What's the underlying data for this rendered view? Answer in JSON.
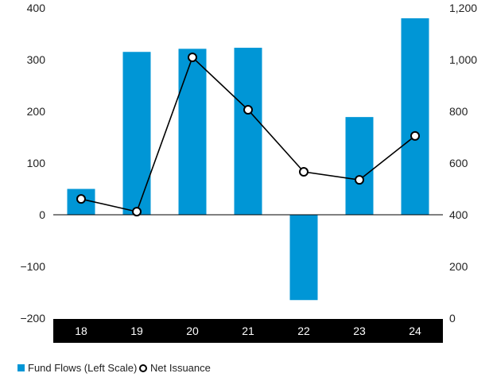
{
  "chart_data": {
    "type": "bar",
    "title": "",
    "categories": [
      "18",
      "19",
      "20",
      "21",
      "22",
      "23",
      "24"
    ],
    "series": [
      {
        "name": "Fund Flows (Left Scale)",
        "type": "bar",
        "axis": "left",
        "color": "#0096d6",
        "values": [
          50,
          315,
          321,
          323,
          -165,
          189,
          380
        ]
      },
      {
        "name": "Net Issuance",
        "type": "line",
        "axis": "right",
        "color": "#000000",
        "values": [
          461,
          412,
          1009,
          806,
          566,
          535,
          705
        ]
      }
    ],
    "left_axis": {
      "ylim": [
        -200,
        400
      ],
      "ticks": [
        400,
        300,
        200,
        100,
        0,
        -100,
        -200
      ],
      "tick_labels": [
        "400",
        "300",
        "200",
        "100",
        "0",
        "−100",
        "−200"
      ]
    },
    "right_axis": {
      "ylim": [
        0,
        1200
      ],
      "ticks": [
        1200,
        1000,
        800,
        600,
        400,
        200,
        0
      ],
      "tick_labels": [
        "1,200",
        "1,000",
        "800",
        "600",
        "400",
        "200",
        "0"
      ]
    },
    "legend": {
      "placement": "bottom-left",
      "items": [
        "Fund Flows (Left Scale)",
        "Net Issuance"
      ]
    },
    "grid": false
  }
}
